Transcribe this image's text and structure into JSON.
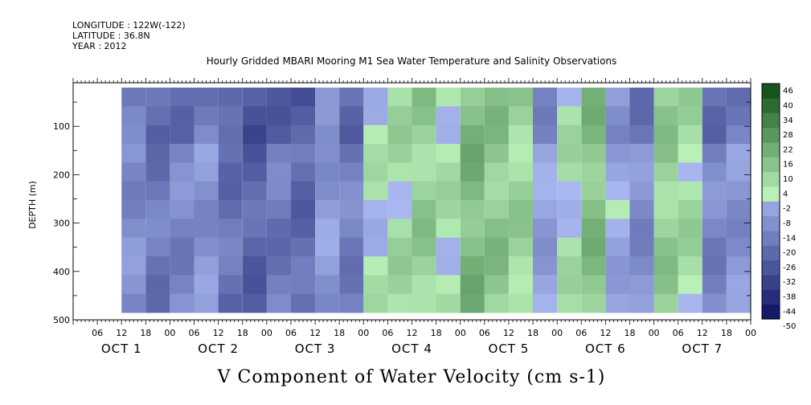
{
  "header": {
    "longitude": "LONGITUDE : 122W(-122)",
    "latitude": "LATITUDE : 36.8N",
    "year": "YEAR : 2012"
  },
  "chart_data": {
    "type": "heatmap",
    "title": "Hourly Gridded MBARI Mooring M1 Sea Water Temperature and Salinity Observations",
    "xlabel": "V Component of Water Velocity (cm s-1)",
    "ylabel": "DEPTH (m)",
    "x_hour_ticks": [
      "06",
      "12",
      "18",
      "00",
      "06",
      "12",
      "18",
      "00",
      "06",
      "12",
      "18",
      "00",
      "06",
      "12",
      "18",
      "00",
      "06",
      "12",
      "18",
      "00",
      "06",
      "12",
      "18",
      "00",
      "06",
      "12",
      "18",
      "00"
    ],
    "x_day_labels": [
      "OCT 1",
      "OCT 2",
      "OCT 3",
      "OCT 4",
      "OCT 5",
      "OCT 6",
      "OCT 7"
    ],
    "xlim_hours": [
      0,
      168
    ],
    "data_start_hour": 12,
    "y_ticks": [
      100,
      200,
      300,
      400,
      500
    ],
    "y_tick_labels": [
      "100",
      "200",
      "300",
      "400",
      "500"
    ],
    "ylim": [
      500,
      10
    ],
    "data_depth_range": [
      20,
      485
    ],
    "colorbar": {
      "levels": [
        -50,
        -44,
        -38,
        -32,
        -26,
        -20,
        -14,
        -8,
        -2,
        4,
        10,
        16,
        22,
        28,
        34,
        40,
        46
      ],
      "labels": [
        "46",
        "40",
        "34",
        "28",
        "22",
        "16",
        "10",
        "4",
        "-2",
        "-8",
        "-14",
        "-20",
        "-26",
        "-32",
        "-38",
        "-44",
        "-50"
      ],
      "low_color": "#0a1060",
      "mid_low_color": "#a9b8f0",
      "mid_high_color": "#b8f0b8",
      "high_color": "#0a4a14"
    },
    "columns": [
      {
        "hour": 12,
        "v": -12
      },
      {
        "hour": 18,
        "v": -18
      },
      {
        "hour": 24,
        "v": -14
      },
      {
        "hour": 30,
        "v": -10
      },
      {
        "hour": 36,
        "v": -20
      },
      {
        "hour": 42,
        "v": -24
      },
      {
        "hour": 48,
        "v": -18
      },
      {
        "hour": 54,
        "v": -22
      },
      {
        "hour": 60,
        "v": -8
      },
      {
        "hour": 66,
        "v": -16
      },
      {
        "hour": 72,
        "v": 2
      },
      {
        "hour": 78,
        "v": 6
      },
      {
        "hour": 84,
        "v": 10
      },
      {
        "hour": 90,
        "v": 4
      },
      {
        "hour": 96,
        "v": 16
      },
      {
        "hour": 102,
        "v": 12
      },
      {
        "hour": 108,
        "v": 8
      },
      {
        "hour": 114,
        "v": -6
      },
      {
        "hour": 120,
        "v": 4
      },
      {
        "hour": 126,
        "v": 14
      },
      {
        "hour": 132,
        "v": -4
      },
      {
        "hour": 138,
        "v": -12
      },
      {
        "hour": 144,
        "v": 10
      },
      {
        "hour": 150,
        "v": 6
      },
      {
        "hour": 156,
        "v": -14
      },
      {
        "hour": 162,
        "v": -10
      },
      {
        "hour": 168,
        "v": -8
      }
    ]
  }
}
